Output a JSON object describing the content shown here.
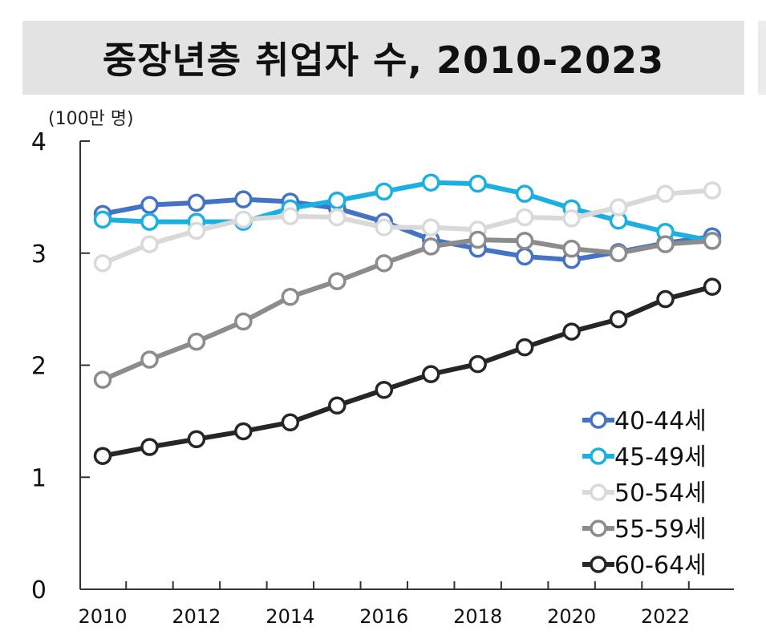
{
  "title": "중장년층 취업자 수, 2010-2023",
  "chart_data": {
    "type": "line",
    "unit_label": "(100만 명)",
    "x": [
      2010,
      2011,
      2012,
      2013,
      2014,
      2015,
      2016,
      2017,
      2018,
      2019,
      2020,
      2021,
      2022,
      2023
    ],
    "x_tick_labels": [
      "2010",
      "2012",
      "2014",
      "2016",
      "2018",
      "2020",
      "2022"
    ],
    "y_tick_labels": [
      "0",
      "1",
      "2",
      "3",
      "4"
    ],
    "ylim": [
      0,
      4
    ],
    "xlim": [
      2010,
      2023
    ],
    "grid": false,
    "legend_position": "bottom-right",
    "series": [
      {
        "name": "40-44세",
        "color": "#4472c4",
        "fill": "#ffffff",
        "values": [
          3.35,
          3.43,
          3.45,
          3.48,
          3.46,
          3.4,
          3.28,
          3.12,
          3.04,
          2.97,
          2.94,
          3.01,
          3.09,
          3.15
        ]
      },
      {
        "name": "45-49세",
        "color": "#1bb0e0",
        "fill": "#ffffff",
        "values": [
          3.3,
          3.28,
          3.28,
          3.28,
          3.4,
          3.47,
          3.55,
          3.63,
          3.62,
          3.53,
          3.4,
          3.29,
          3.19,
          3.11
        ]
      },
      {
        "name": "50-54세",
        "color": "#d9d9d9",
        "fill": "#ffffff",
        "values": [
          2.91,
          3.08,
          3.2,
          3.3,
          3.33,
          3.32,
          3.23,
          3.23,
          3.21,
          3.32,
          3.31,
          3.41,
          3.53,
          3.56
        ]
      },
      {
        "name": "55-59세",
        "color": "#8c8c8c",
        "fill": "#ffffff",
        "values": [
          1.87,
          2.05,
          2.21,
          2.39,
          2.61,
          2.75,
          2.91,
          3.06,
          3.12,
          3.11,
          3.04,
          3.0,
          3.08,
          3.11
        ]
      },
      {
        "name": "60-64세",
        "color": "#262626",
        "fill": "#ffffff",
        "values": [
          1.19,
          1.27,
          1.34,
          1.41,
          1.49,
          1.64,
          1.78,
          1.92,
          2.01,
          2.16,
          2.3,
          2.41,
          2.59,
          2.7
        ]
      }
    ]
  }
}
